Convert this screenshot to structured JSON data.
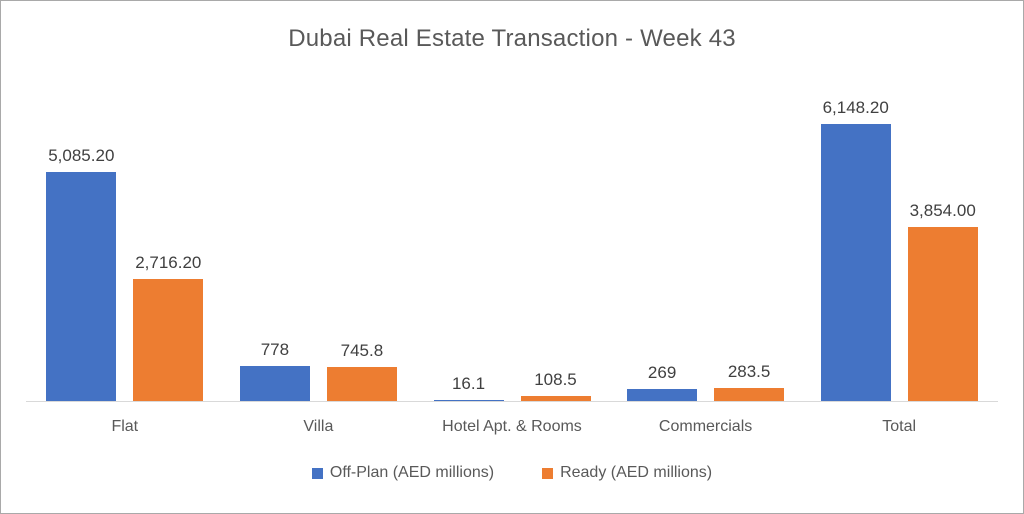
{
  "chart_data": {
    "type": "bar",
    "title": "Dubai Real Estate Transaction - Week 43",
    "categories": [
      "Flat",
      "Villa",
      "Hotel Apt. & Rooms",
      "Commercials",
      "Total"
    ],
    "series": [
      {
        "name": "Off-Plan (AED millions)",
        "color": "#4472C4",
        "values": [
          5085.2,
          778,
          16.1,
          269,
          6148.2
        ],
        "labels": [
          "5,085.20",
          "778",
          "16.1",
          "269",
          "6,148.20"
        ]
      },
      {
        "name": "Ready (AED millions)",
        "color": "#ED7D31",
        "values": [
          2716.2,
          745.8,
          108.5,
          283.5,
          3854.0
        ],
        "labels": [
          "2,716.20",
          "745.8",
          "108.5",
          "283.5",
          "3,854.00"
        ]
      }
    ],
    "ylim": [
      0,
      6148.2
    ],
    "gridlines": false,
    "legend_position": "bottom",
    "axis_line_color": "#D9D9D9",
    "title_color": "#595959",
    "label_color": "#404040"
  }
}
